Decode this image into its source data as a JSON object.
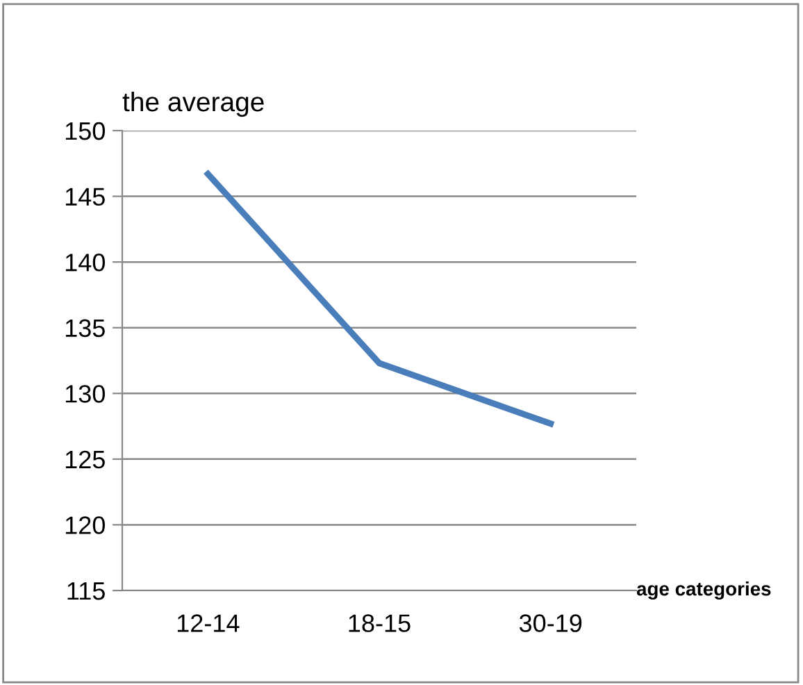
{
  "chart_data": {
    "type": "line",
    "ylabel": "the average",
    "xlabel": "age categories",
    "categories": [
      "12-14",
      "18-15",
      "30-19"
    ],
    "series": [
      {
        "color": "#4a7ebb",
        "values": [
          146.7,
          132.3,
          127.7
        ]
      }
    ],
    "ylim": [
      115,
      150
    ],
    "yticks": [
      115,
      120,
      125,
      130,
      135,
      140,
      145,
      150
    ],
    "grid": "y",
    "marker": "none",
    "line_style": "solid",
    "legend": false
  }
}
